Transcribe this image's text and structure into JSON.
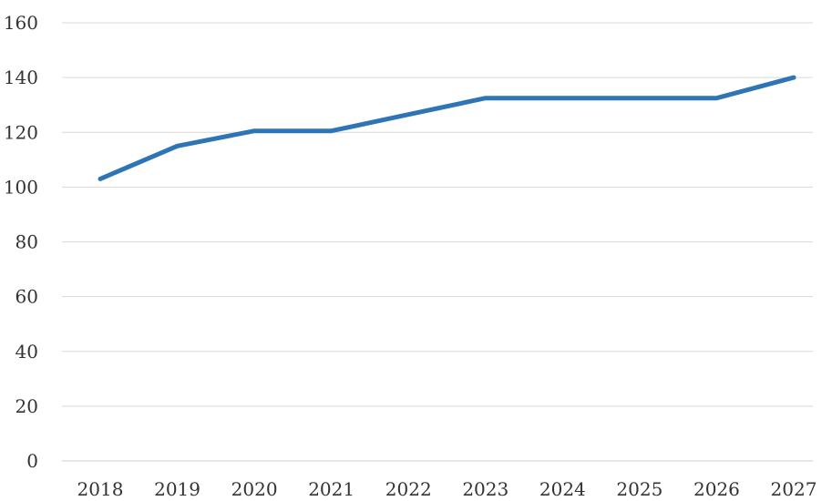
{
  "chart_data": {
    "type": "line",
    "title": "",
    "xlabel": "",
    "ylabel": "",
    "categories": [
      "2018",
      "2019",
      "2020",
      "2021",
      "2022",
      "2023",
      "2024",
      "2025",
      "2026",
      "2027"
    ],
    "series": [
      {
        "values": [
          103,
          115,
          120.5,
          120.5,
          126.5,
          132.5,
          132.5,
          132.5,
          132.5,
          140
        ],
        "color": "#2e75b6"
      }
    ],
    "ylim": [
      0,
      160
    ],
    "yticks": [
      "0",
      "20",
      "40",
      "60",
      "80",
      "100",
      "120",
      "140",
      "160"
    ],
    "grid": true,
    "legend": "none",
    "colors": {
      "grid": "#d9d9d9",
      "text": "#333333",
      "background": "#ffffff"
    }
  }
}
